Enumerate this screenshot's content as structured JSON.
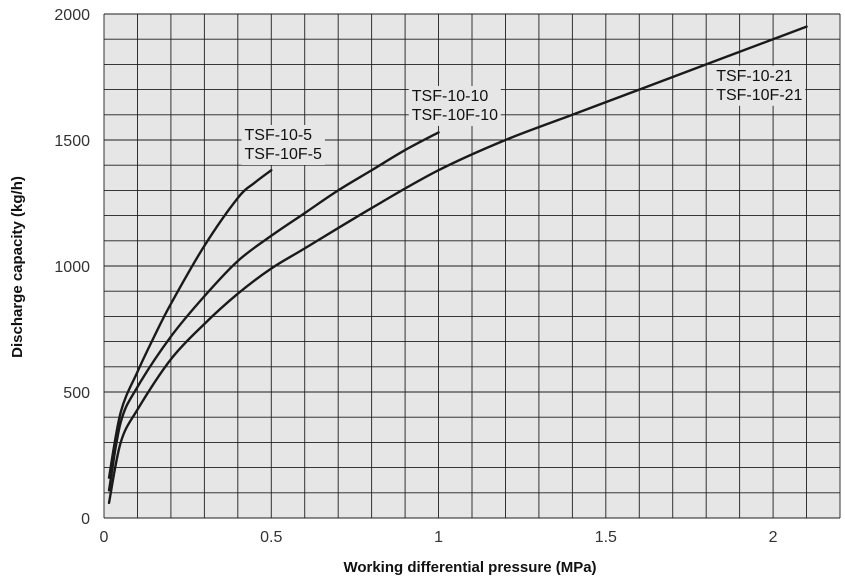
{
  "chart_data": {
    "type": "line",
    "title": "",
    "xlabel": "Working differential pressure (MPa)",
    "ylabel": "Discharge capacity (kg/h)",
    "xlim": [
      0,
      2.2
    ],
    "ylim": [
      0,
      2000
    ],
    "x_ticks": [
      {
        "value": 0,
        "label": "0"
      },
      {
        "value": 0.5,
        "label": "0.5"
      },
      {
        "value": 1,
        "label": "1"
      },
      {
        "value": 1.5,
        "label": "1.5"
      },
      {
        "value": 2,
        "label": "2"
      }
    ],
    "y_ticks": [
      {
        "value": 0,
        "label": "0"
      },
      {
        "value": 500,
        "label": "500"
      },
      {
        "value": 1000,
        "label": "1000"
      },
      {
        "value": 1500,
        "label": "1500"
      },
      {
        "value": 2000,
        "label": "2000"
      }
    ],
    "grid": true,
    "x_minor_step": 0.1,
    "y_minor_step": 100,
    "background": "#e6e6e6",
    "line_color": "#1a1a1a",
    "series": [
      {
        "name_lines": [
          "TSF-10-5",
          "TSF-10F-5"
        ],
        "label_anchor": [
          0.42,
          1500
        ],
        "x": [
          0.015,
          0.05,
          0.1,
          0.15,
          0.2,
          0.3,
          0.4,
          0.45,
          0.5
        ],
        "y": [
          160,
          420,
          580,
          720,
          850,
          1080,
          1270,
          1330,
          1380
        ]
      },
      {
        "name_lines": [
          "TSF-10-10",
          "TSF-10F-10"
        ],
        "label_anchor": [
          0.92,
          1655
        ],
        "x": [
          0.015,
          0.05,
          0.1,
          0.2,
          0.3,
          0.4,
          0.5,
          0.6,
          0.7,
          0.8,
          0.9,
          1.0
        ],
        "y": [
          110,
          380,
          520,
          720,
          880,
          1020,
          1120,
          1210,
          1300,
          1380,
          1460,
          1530
        ]
      },
      {
        "name_lines": [
          "TSF-10-21",
          "TSF-10F-21"
        ],
        "label_anchor": [
          1.83,
          1735
        ],
        "x": [
          0.015,
          0.05,
          0.1,
          0.2,
          0.3,
          0.4,
          0.5,
          0.6,
          0.8,
          1.0,
          1.2,
          1.4,
          1.6,
          1.8,
          2.0,
          2.1
        ],
        "y": [
          60,
          300,
          430,
          630,
          770,
          890,
          990,
          1070,
          1230,
          1380,
          1500,
          1600,
          1700,
          1800,
          1900,
          1950
        ]
      }
    ]
  }
}
